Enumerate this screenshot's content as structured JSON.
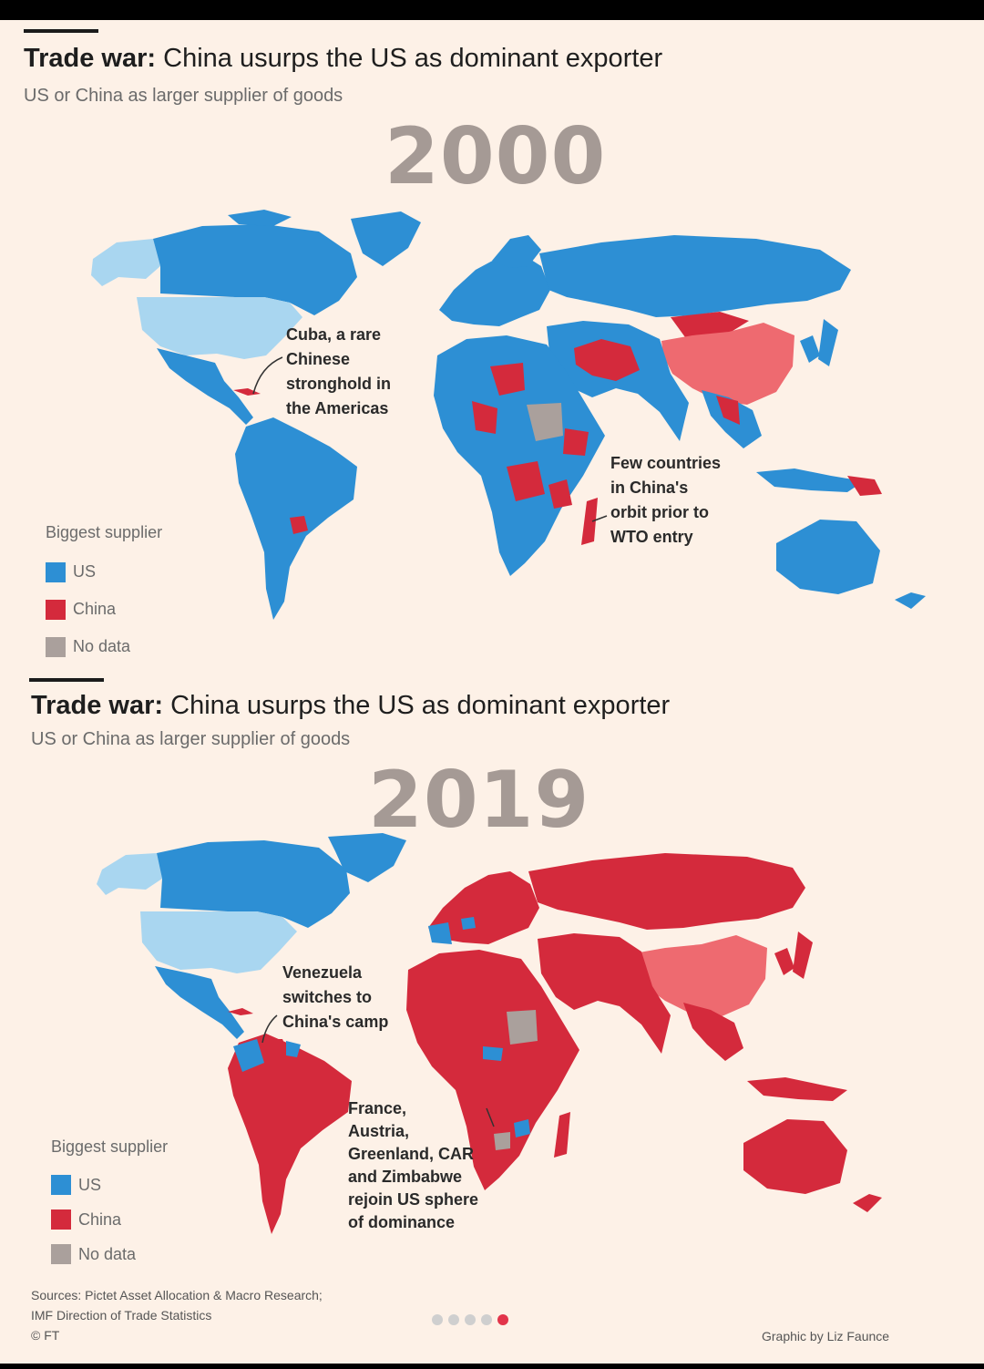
{
  "colors": {
    "us": "#2d8fd4",
    "us_light": "#a9d6f0",
    "china": "#d42a3c",
    "china_light": "#ee6a70",
    "no_data": "#aaa09c",
    "background": "#fdf1e7"
  },
  "panels": [
    {
      "title_bold": "Trade war:",
      "title_rest": " China usurps the US as dominant exporter",
      "subtitle": "US or China as larger supplier of goods",
      "year": "2000",
      "legend": {
        "title": "Biggest supplier",
        "items": [
          {
            "label": "US",
            "color": "#2d8fd4"
          },
          {
            "label": "China",
            "color": "#d42a3c"
          },
          {
            "label": "No data",
            "color": "#aaa09c"
          }
        ]
      },
      "annotations": [
        {
          "lines": [
            "Cuba, a rare",
            "Chinese",
            "stronghold in",
            "the Americas"
          ]
        },
        {
          "lines": [
            "Few countries",
            "in China's",
            "orbit prior to",
            "WTO entry"
          ]
        }
      ]
    },
    {
      "title_bold": "Trade war:",
      "title_rest": " China usurps the US as dominant exporter",
      "subtitle": "US or China as larger supplier of goods",
      "year": "2019",
      "legend": {
        "title": "Biggest supplier",
        "items": [
          {
            "label": "US",
            "color": "#2d8fd4"
          },
          {
            "label": "China",
            "color": "#d42a3c"
          },
          {
            "label": "No data",
            "color": "#aaa09c"
          }
        ]
      },
      "annotations": [
        {
          "lines": [
            "Venezuela",
            "switches to",
            "China's camp"
          ]
        },
        {
          "lines": [
            "France,",
            "Austria,",
            "Greenland, CAR",
            "and Zimbabwe",
            "rejoin US sphere",
            "of dominance"
          ]
        }
      ]
    }
  ],
  "footer": {
    "sources": [
      "Sources: Pictet Asset Allocation & Macro Research;",
      "IMF Direction of Trade Statistics",
      "© FT"
    ],
    "credit": "Graphic by Liz Faunce"
  },
  "pagination": {
    "total": 5,
    "active": 5
  }
}
